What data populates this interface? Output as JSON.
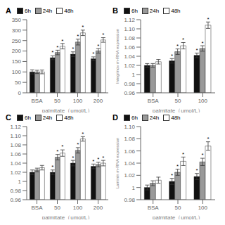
{
  "chart_data": [
    {
      "type": "bar",
      "title": "A",
      "xlabel": "palmitate（umol/L）",
      "categories": [
        "BSA",
        "50",
        "100",
        "200"
      ],
      "ylim": [
        0,
        350
      ],
      "yticks": [
        0,
        50,
        100,
        150,
        200,
        250,
        300,
        350
      ],
      "grid": false,
      "legend": "upper left",
      "annotation": "*",
      "series": [
        {
          "name": "6h",
          "color": "#111111",
          "values": [
            100,
            168,
            185,
            163
          ],
          "errors": [
            10,
            9,
            11,
            9
          ],
          "annotation_y": [
            null,
            185,
            202,
            178
          ]
        },
        {
          "name": "24h",
          "color": "#999999",
          "values": [
            100,
            193,
            243,
            201
          ],
          "errors": [
            8,
            11,
            14,
            11
          ],
          "annotation_y": [
            null,
            208,
            262,
            217
          ]
        },
        {
          "name": "48h",
          "color": "#ffffff",
          "values": [
            100,
            223,
            287,
            253
          ],
          "errors": [
            9,
            13,
            13,
            11
          ],
          "annotation_y": [
            null,
            240,
            305,
            268
          ]
        }
      ]
    },
    {
      "type": "bar",
      "title": "B",
      "ylabel": "Integrinαv m-RNA expression",
      "xlabel": "palmitate（umol/L）",
      "categories": [
        "BSA",
        "50",
        "100"
      ],
      "ylim": [
        0.96,
        1.12
      ],
      "yticks": [
        0.96,
        0.98,
        1,
        1.02,
        1.04,
        1.06,
        1.08,
        {
          "value": 1.1,
          "label": "1.10"
        },
        1.12
      ],
      "grid": false,
      "legend": "upper left",
      "annotation": "*",
      "series": [
        {
          "name": "6h",
          "color": "#111111",
          "values": [
            1.02,
            1.03,
            1.042
          ],
          "errors": [
            0.004,
            0.005,
            0.005
          ],
          "annotation_y": [
            null,
            1.037,
            1.049
          ]
        },
        {
          "name": "24h",
          "color": "#999999",
          "values": [
            1.02,
            1.05,
            1.057
          ],
          "errors": [
            0.004,
            0.006,
            0.006
          ],
          "annotation_y": [
            null,
            1.058,
            1.065
          ]
        },
        {
          "name": "48h",
          "color": "#ffffff",
          "values": [
            1.028,
            1.063,
            1.108
          ],
          "errors": [
            0.005,
            0.007,
            0.007
          ],
          "annotation_y": [
            null,
            1.072,
            1.117
          ]
        }
      ]
    },
    {
      "type": "bar",
      "title": "C",
      "xlabel": "palmitate（umol/L）",
      "categories": [
        "BSA",
        "50",
        "100",
        "200"
      ],
      "ylim": [
        0.96,
        1.12
      ],
      "yticks": [
        0.96,
        0.98,
        1,
        1.02,
        1.04,
        1.06,
        1.08,
        {
          "value": 1.1,
          "label": "1.10"
        },
        1.12
      ],
      "grid": false,
      "legend": "upper left",
      "annotation": "*",
      "series": [
        {
          "name": "6h",
          "color": "#111111",
          "values": [
            1.02,
            1.02,
            1.04,
            1.033
          ],
          "errors": [
            0.005,
            0.005,
            0.006,
            0.005
          ],
          "annotation_y": [
            null,
            1.027,
            1.048,
            1.04
          ]
        },
        {
          "name": "24h",
          "color": "#999999",
          "values": [
            1.025,
            1.053,
            1.068,
            1.037
          ],
          "errors": [
            0.004,
            0.006,
            0.006,
            0.005
          ],
          "annotation_y": [
            null,
            1.062,
            1.077,
            1.044
          ]
        },
        {
          "name": "48h",
          "color": "#ffffff",
          "values": [
            1.03,
            1.062,
            1.093,
            1.04
          ],
          "errors": [
            0.005,
            0.007,
            0.005,
            0.006
          ],
          "annotation_y": [
            null,
            1.072,
            1.1,
            1.048
          ]
        }
      ]
    },
    {
      "type": "bar",
      "title": "D",
      "ylabel": "Laminin m-RNA expression",
      "xlabel": "palmitate（umol/L）",
      "categories": [
        "BSA",
        "50",
        "100"
      ],
      "ylim": [
        0.98,
        1.1
      ],
      "yticks": [
        0.98,
        1,
        1.02,
        1.04,
        1.06,
        1.08,
        {
          "value": 1.1,
          "label": "1.10"
        }
      ],
      "grid": false,
      "legend": "upper left",
      "annotation": "*",
      "series": [
        {
          "name": "6h",
          "color": "#111111",
          "values": [
            1.0,
            1.01,
            1.018
          ],
          "errors": [
            0.004,
            0.005,
            0.005
          ],
          "annotation_y": [
            null,
            1.017,
            1.025
          ]
        },
        {
          "name": "24h",
          "color": "#999999",
          "values": [
            1.007,
            1.025,
            1.042
          ],
          "errors": [
            0.004,
            0.005,
            0.006
          ],
          "annotation_y": [
            null,
            1.032,
            1.05
          ]
        },
        {
          "name": "48h",
          "color": "#ffffff",
          "values": [
            1.012,
            1.043,
            1.068
          ],
          "errors": [
            0.005,
            0.007,
            0.007
          ],
          "annotation_y": [
            null,
            1.052,
            1.077
          ]
        }
      ]
    }
  ]
}
